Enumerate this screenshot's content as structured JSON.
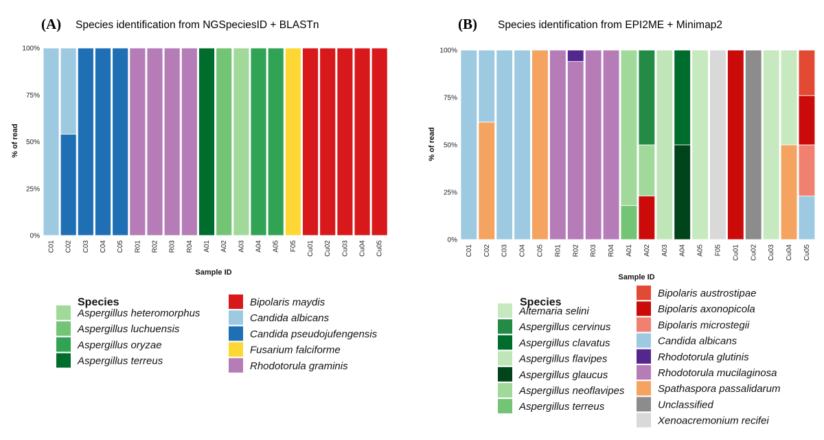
{
  "chart_data": [
    {
      "type": "bar",
      "stacked": true,
      "panel_label": "(A)",
      "title": "Species identification from NGSpeciesID + BLASTn",
      "xlabel": "Sample ID",
      "ylabel": "% of read",
      "ylim": [
        0,
        100
      ],
      "yticks": [
        "0%",
        "25%",
        "50%",
        "75%",
        "100%"
      ],
      "grid": false,
      "legend_title": "Species",
      "legend_position": "bottom-left",
      "legend_entries": [
        {
          "name": "Aspergillus heteromorphus",
          "color": "#a1d99b"
        },
        {
          "name": "Aspergillus luchuensis",
          "color": "#74c476"
        },
        {
          "name": "Aspergillus oryzae",
          "color": "#31a354"
        },
        {
          "name": "Aspergillus terreus",
          "color": "#006d2c"
        },
        {
          "name": "Bipolaris maydis",
          "color": "#d7191c"
        },
        {
          "name": "Candida albicans",
          "color": "#9ecae1"
        },
        {
          "name": "Candida pseudojufengensis",
          "color": "#1f6fb4"
        },
        {
          "name": "Fusarium falciforme",
          "color": "#fdd835"
        },
        {
          "name": "Rhodotorula graminis",
          "color": "#b57cb8"
        }
      ],
      "categories": [
        "C01",
        "C02",
        "C03",
        "C04",
        "C05",
        "R01",
        "R02",
        "R03",
        "R04",
        "A01",
        "A02",
        "A03",
        "A04",
        "A05",
        "F05",
        "Cu01",
        "Cu02",
        "Cu03",
        "Cu04",
        "Cu05"
      ],
      "stacks": [
        [
          {
            "species": "Candida albicans",
            "value": 100
          }
        ],
        [
          {
            "species": "Candida pseudojufengensis",
            "value": 54
          },
          {
            "species": "Candida albicans",
            "value": 46
          }
        ],
        [
          {
            "species": "Candida pseudojufengensis",
            "value": 100
          }
        ],
        [
          {
            "species": "Candida pseudojufengensis",
            "value": 100
          }
        ],
        [
          {
            "species": "Candida pseudojufengensis",
            "value": 100
          }
        ],
        [
          {
            "species": "Rhodotorula graminis",
            "value": 100
          }
        ],
        [
          {
            "species": "Rhodotorula graminis",
            "value": 100
          }
        ],
        [
          {
            "species": "Rhodotorula graminis",
            "value": 100
          }
        ],
        [
          {
            "species": "Rhodotorula graminis",
            "value": 100
          }
        ],
        [
          {
            "species": "Aspergillus terreus",
            "value": 100
          }
        ],
        [
          {
            "species": "Aspergillus luchuensis",
            "value": 100
          }
        ],
        [
          {
            "species": "Aspergillus heteromorphus",
            "value": 100
          }
        ],
        [
          {
            "species": "Aspergillus oryzae",
            "value": 100
          }
        ],
        [
          {
            "species": "Aspergillus oryzae",
            "value": 100
          }
        ],
        [
          {
            "species": "Fusarium falciforme",
            "value": 100
          }
        ],
        [
          {
            "species": "Bipolaris maydis",
            "value": 100
          }
        ],
        [
          {
            "species": "Bipolaris maydis",
            "value": 100
          }
        ],
        [
          {
            "species": "Bipolaris maydis",
            "value": 100
          }
        ],
        [
          {
            "species": "Bipolaris maydis",
            "value": 100
          }
        ],
        [
          {
            "species": "Bipolaris maydis",
            "value": 100
          }
        ]
      ]
    },
    {
      "type": "bar",
      "stacked": true,
      "panel_label": "(B)",
      "title": "Species identification from EPI2ME + Minimap2",
      "xlabel": "Sample ID",
      "ylabel": "% of read",
      "ylim": [
        0,
        100
      ],
      "yticks": [
        "0%",
        "25%",
        "50%",
        "75%",
        "100%"
      ],
      "grid": false,
      "legend_title": "Species",
      "legend_position": "bottom-right",
      "legend_entries": [
        {
          "name": "Altemaria selini",
          "color": "#c7e9c0"
        },
        {
          "name": "Aspergillus cervinus",
          "color": "#238b45"
        },
        {
          "name": "Aspergillus clavatus",
          "color": "#006d2c"
        },
        {
          "name": "Aspergillus flavipes",
          "color": "#bfe5b9"
        },
        {
          "name": "Aspergillus glaucus",
          "color": "#00441b"
        },
        {
          "name": "Aspergillus neoflavipes",
          "color": "#a1d99b"
        },
        {
          "name": "Aspergillus terreus",
          "color": "#74c476"
        },
        {
          "name": "Bipolaris austrostipae",
          "color": "#e34a33"
        },
        {
          "name": "Bipolaris axonopicola",
          "color": "#cb0a0a"
        },
        {
          "name": "Bipolaris microstegii",
          "color": "#f08070"
        },
        {
          "name": "Candida albicans",
          "color": "#9ecae1"
        },
        {
          "name": "Rhodotorula glutinis",
          "color": "#54278f"
        },
        {
          "name": "Rhodotorula mucilaginosa",
          "color": "#b57cb8"
        },
        {
          "name": "Spathaspora passalidarum",
          "color": "#f4a460"
        },
        {
          "name": "Unclassified",
          "color": "#8c8c8c"
        },
        {
          "name": "Xenoacremonium recifei",
          "color": "#d9d9d9"
        }
      ],
      "categories": [
        "C01",
        "C02",
        "C03",
        "C04",
        "C05",
        "R01",
        "R02",
        "R03",
        "R04",
        "A01",
        "A02",
        "A03",
        "A04",
        "A05",
        "F05",
        "Cu01",
        "Cu02",
        "Cu03",
        "Cu04",
        "Cu05"
      ],
      "stacks": [
        [
          {
            "species": "Candida albicans",
            "value": 100
          }
        ],
        [
          {
            "species": "Spathaspora passalidarum",
            "value": 62
          },
          {
            "species": "Candida albicans",
            "value": 38
          }
        ],
        [
          {
            "species": "Candida albicans",
            "value": 100
          }
        ],
        [
          {
            "species": "Candida albicans",
            "value": 100
          }
        ],
        [
          {
            "species": "Spathaspora passalidarum",
            "value": 100
          }
        ],
        [
          {
            "species": "Rhodotorula mucilaginosa",
            "value": 100
          }
        ],
        [
          {
            "species": "Rhodotorula mucilaginosa",
            "value": 94
          },
          {
            "species": "Rhodotorula glutinis",
            "value": 6
          }
        ],
        [
          {
            "species": "Rhodotorula mucilaginosa",
            "value": 100
          }
        ],
        [
          {
            "species": "Rhodotorula mucilaginosa",
            "value": 100
          }
        ],
        [
          {
            "species": "Aspergillus terreus",
            "value": 18
          },
          {
            "species": "Aspergillus neoflavipes",
            "value": 82
          }
        ],
        [
          {
            "species": "Bipolaris axonopicola",
            "value": 23
          },
          {
            "species": "Aspergillus neoflavipes",
            "value": 27
          },
          {
            "species": "Aspergillus cervinus",
            "value": 50
          }
        ],
        [
          {
            "species": "Aspergillus flavipes",
            "value": 100
          }
        ],
        [
          {
            "species": "Aspergillus glaucus",
            "value": 50
          },
          {
            "species": "Aspergillus clavatus",
            "value": 50
          }
        ],
        [
          {
            "species": "Altemaria selini",
            "value": 100
          }
        ],
        [
          {
            "species": "Xenoacremonium recifei",
            "value": 100
          }
        ],
        [
          {
            "species": "Bipolaris axonopicola",
            "value": 100
          }
        ],
        [
          {
            "species": "Unclassified",
            "value": 100
          }
        ],
        [
          {
            "species": "Altemaria selini",
            "value": 100
          }
        ],
        [
          {
            "species": "Spathaspora passalidarum",
            "value": 50
          },
          {
            "species": "Altemaria selini",
            "value": 50
          }
        ],
        [
          {
            "species": "Candida albicans",
            "value": 23
          },
          {
            "species": "Bipolaris microstegii",
            "value": 27
          },
          {
            "species": "Bipolaris axonopicola",
            "value": 26
          },
          {
            "species": "Bipolaris austrostipae",
            "value": 24
          }
        ]
      ]
    }
  ]
}
